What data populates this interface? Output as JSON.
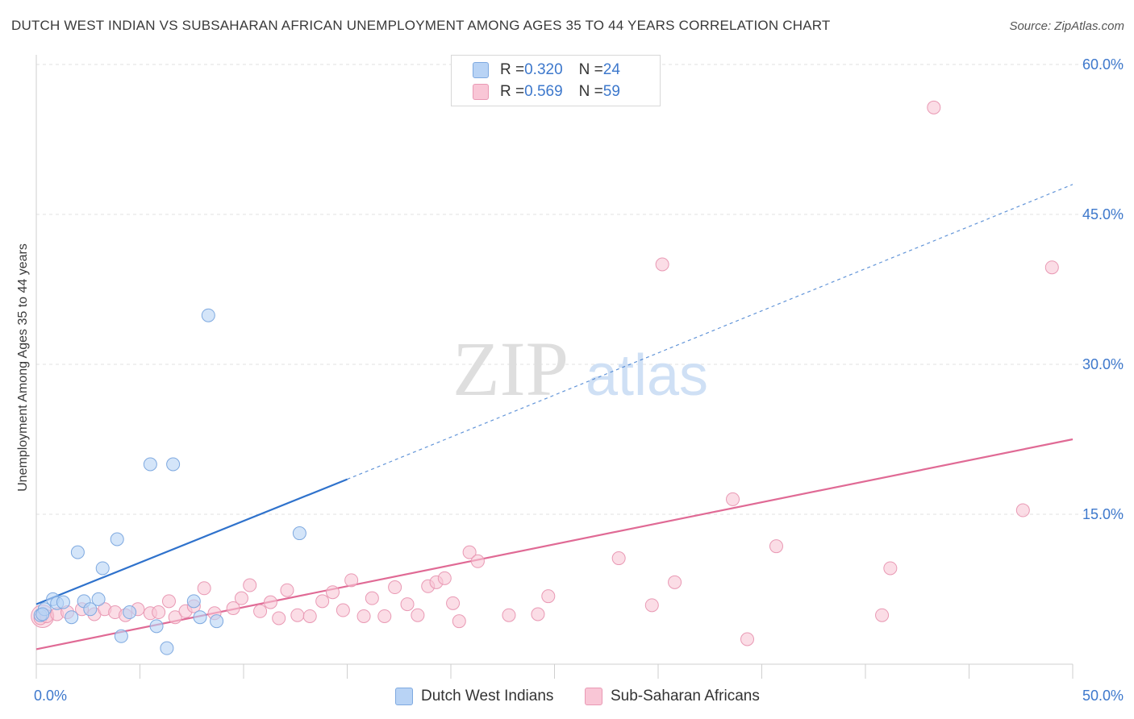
{
  "title": "DUTCH WEST INDIAN VS SUBSAHARAN AFRICAN UNEMPLOYMENT AMONG AGES 35 TO 44 YEARS CORRELATION CHART",
  "source": "Source: ZipAtlas.com",
  "watermark": {
    "zip": "ZIP",
    "atlas": "atlas"
  },
  "legend": {
    "rows": [
      {
        "r_label": "R = ",
        "r_value": "0.320",
        "n_label": "N = ",
        "n_value": "24"
      },
      {
        "r_label": "R = ",
        "r_value": "0.569",
        "n_label": "N = ",
        "n_value": "59"
      }
    ]
  },
  "bottom_legend": {
    "series1": "Dutch West Indians",
    "series2": "Sub-Saharan Africans"
  },
  "colors": {
    "blue_fill": "#b8d3f5",
    "blue_stroke": "#7ea9e0",
    "blue_line": "#2f72cc",
    "pink_fill": "#f9c6d6",
    "pink_stroke": "#e999b4",
    "pink_line": "#e06a95",
    "tick_label": "#3d78cc",
    "grid": "#e2e2e2"
  },
  "chart_data": {
    "type": "scatter",
    "title": "DUTCH WEST INDIAN VS SUBSAHARAN AFRICAN UNEMPLOYMENT AMONG AGES 35 TO 44 YEARS CORRELATION CHART",
    "xlabel": "",
    "ylabel": "Unemployment Among Ages 35 to 44 years",
    "xlim": [
      0,
      50
    ],
    "ylim": [
      0,
      60
    ],
    "x_tick_labels": [
      "0.0%",
      "50.0%"
    ],
    "y_ticks": [
      15,
      30,
      45,
      60
    ],
    "y_tick_labels": [
      "15.0%",
      "30.0%",
      "45.0%",
      "60.0%"
    ],
    "grid": true,
    "legend_position": "top-center",
    "series": [
      {
        "name": "Dutch West Indians",
        "R": 0.32,
        "N": 24,
        "points": [
          [
            0.2,
            4.9
          ],
          [
            0.4,
            5.5
          ],
          [
            0.8,
            6.5
          ],
          [
            1.0,
            6.1
          ],
          [
            1.3,
            6.2
          ],
          [
            1.7,
            4.7
          ],
          [
            2.0,
            11.2
          ],
          [
            2.3,
            6.3
          ],
          [
            2.6,
            5.5
          ],
          [
            3.0,
            6.5
          ],
          [
            3.2,
            9.6
          ],
          [
            3.9,
            12.5
          ],
          [
            4.1,
            2.8
          ],
          [
            4.5,
            5.2
          ],
          [
            5.5,
            20.0
          ],
          [
            5.8,
            3.8
          ],
          [
            6.3,
            1.6
          ],
          [
            6.6,
            20.0
          ],
          [
            7.6,
            6.3
          ],
          [
            7.9,
            4.7
          ],
          [
            8.3,
            34.9
          ],
          [
            8.7,
            4.3
          ],
          [
            12.7,
            13.1
          ],
          [
            0.3,
            5.0
          ]
        ],
        "trend_solid": [
          [
            0,
            6.0
          ],
          [
            15,
            18.5
          ]
        ],
        "trend_dashed": [
          [
            15,
            18.5
          ],
          [
            50,
            48.0
          ]
        ]
      },
      {
        "name": "Sub-Saharan Africans",
        "R": 0.569,
        "N": 59,
        "points": [
          [
            0.2,
            4.6
          ],
          [
            0.5,
            4.8
          ],
          [
            1.0,
            5.0
          ],
          [
            1.5,
            5.2
          ],
          [
            2.2,
            5.5
          ],
          [
            2.8,
            5.0
          ],
          [
            3.3,
            5.5
          ],
          [
            3.8,
            5.2
          ],
          [
            4.3,
            4.9
          ],
          [
            4.9,
            5.5
          ],
          [
            5.5,
            5.1
          ],
          [
            5.9,
            5.2
          ],
          [
            6.4,
            6.3
          ],
          [
            6.7,
            4.7
          ],
          [
            7.2,
            5.3
          ],
          [
            7.6,
            5.8
          ],
          [
            8.1,
            7.6
          ],
          [
            8.6,
            5.1
          ],
          [
            9.5,
            5.6
          ],
          [
            9.9,
            6.6
          ],
          [
            10.3,
            7.9
          ],
          [
            10.8,
            5.3
          ],
          [
            11.3,
            6.2
          ],
          [
            11.7,
            4.6
          ],
          [
            12.1,
            7.4
          ],
          [
            12.6,
            4.9
          ],
          [
            13.2,
            4.8
          ],
          [
            13.8,
            6.3
          ],
          [
            14.3,
            7.2
          ],
          [
            14.8,
            5.4
          ],
          [
            15.2,
            8.4
          ],
          [
            15.8,
            4.8
          ],
          [
            16.2,
            6.6
          ],
          [
            16.8,
            4.8
          ],
          [
            17.3,
            7.7
          ],
          [
            17.9,
            6.0
          ],
          [
            18.4,
            4.9
          ],
          [
            18.9,
            7.8
          ],
          [
            19.3,
            8.2
          ],
          [
            19.7,
            8.6
          ],
          [
            20.1,
            6.1
          ],
          [
            20.4,
            4.3
          ],
          [
            20.9,
            11.2
          ],
          [
            21.3,
            10.3
          ],
          [
            22.8,
            4.9
          ],
          [
            24.2,
            5.0
          ],
          [
            24.7,
            6.8
          ],
          [
            28.1,
            10.6
          ],
          [
            29.7,
            5.9
          ],
          [
            30.2,
            40.0
          ],
          [
            30.8,
            8.2
          ],
          [
            33.6,
            16.5
          ],
          [
            34.3,
            2.5
          ],
          [
            35.7,
            11.8
          ],
          [
            40.8,
            4.9
          ],
          [
            41.2,
            9.6
          ],
          [
            43.3,
            55.7
          ],
          [
            47.6,
            15.4
          ],
          [
            49.0,
            39.7
          ]
        ],
        "trend_solid": [
          [
            0,
            1.5
          ],
          [
            50,
            22.5
          ]
        ]
      }
    ]
  }
}
